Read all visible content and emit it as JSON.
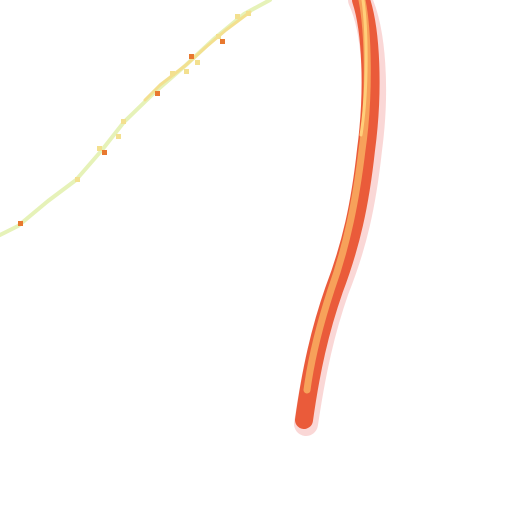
{
  "map": {
    "background_color": "#ffffff",
    "layers": [
      {
        "id": "thin-track",
        "description_visible": false,
        "colors": {
          "base": "#e6f2b8",
          "mid": "#f3e08f",
          "hot": "#e8782f"
        }
      },
      {
        "id": "thick-track",
        "description_visible": false,
        "colors": {
          "halo": "#f5b7b4",
          "outer": "#ea5b3a",
          "core": "#f7a15a",
          "hot_core": "#ffcf7a"
        }
      }
    ]
  }
}
